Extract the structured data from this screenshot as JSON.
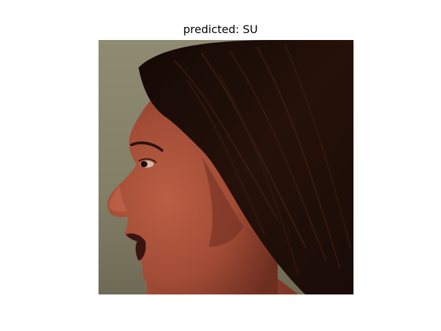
{
  "figure": {
    "title": "predicted: SU"
  },
  "photo": {
    "subject": "profile-face",
    "colors": {
      "wall": "#8c8770",
      "wall_dark": "#6e6a56",
      "skin": "#b0563e",
      "skin_shadow": "#7a3426",
      "skin_highlight": "#c86a4e",
      "hair": "#1e0f0a",
      "hair_mid": "#2f1810",
      "hair_light": "#4a2818",
      "lip_dark": "#3a1410",
      "eye_white": "#d9b8a8",
      "eye_dark": "#1a0c08"
    }
  }
}
